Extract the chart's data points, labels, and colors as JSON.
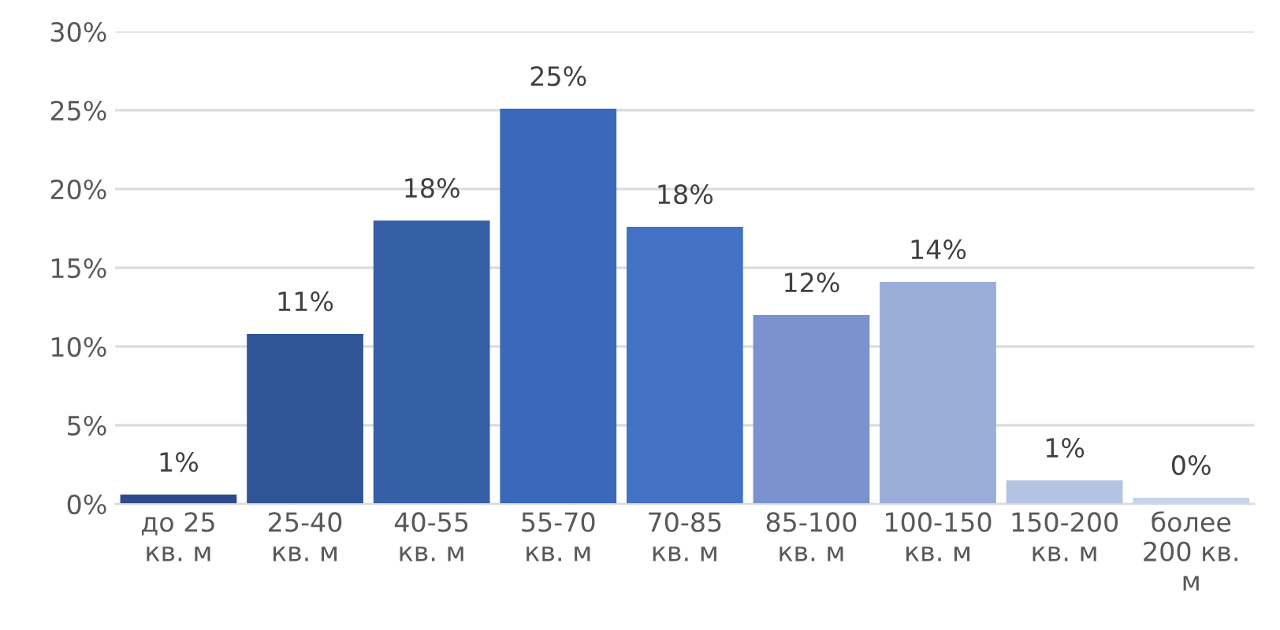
{
  "chart_data": {
    "type": "bar",
    "categories": [
      "до 25\nкв. м",
      "25-40\nкв. м",
      "40-55\nкв. м",
      "55-70\nкв. м",
      "70-85\nкв. м",
      "85-100\nкв. м",
      "100-150\nкв. м",
      "150-200\nкв. м",
      "более\n200 кв.\nм"
    ],
    "values": [
      0.6,
      10.8,
      18.0,
      25.1,
      17.6,
      12.0,
      14.1,
      1.5,
      0.4
    ],
    "value_labels": [
      "1%",
      "11%",
      "18%",
      "25%",
      "18%",
      "12%",
      "14%",
      "1%",
      "0%"
    ],
    "colors": [
      "#2e4a8a",
      "#2f5597",
      "#3560a8",
      "#3b68b8",
      "#4472c4",
      "#7a93cf",
      "#9aaed9",
      "#b4c3e4",
      "#c8d3eb"
    ],
    "ylim": [
      0,
      30
    ],
    "yticks": [
      {
        "value": 0,
        "label": "0%"
      },
      {
        "value": 5,
        "label": "5%"
      },
      {
        "value": 10,
        "label": "10%"
      },
      {
        "value": 15,
        "label": "15%"
      },
      {
        "value": 20,
        "label": "20%"
      },
      {
        "value": 25,
        "label": "25%"
      },
      {
        "value": 30,
        "label": "30%"
      }
    ],
    "grid": "y",
    "legend": false
  }
}
